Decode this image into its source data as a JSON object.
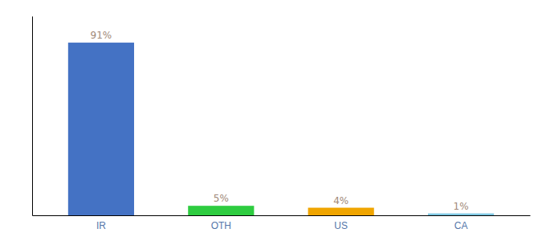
{
  "chart_data": {
    "type": "bar",
    "categories": [
      "IR",
      "OTH",
      "US",
      "CA"
    ],
    "values": [
      91,
      5,
      4,
      1
    ],
    "value_labels": [
      "91%",
      "5%",
      "4%",
      "1%"
    ],
    "colors": [
      "#4472C4",
      "#2ECC40",
      "#F0A500",
      "#7EC8E3"
    ],
    "ylim": [
      0,
      105
    ],
    "data_labels": true,
    "tick_labels": "x"
  }
}
